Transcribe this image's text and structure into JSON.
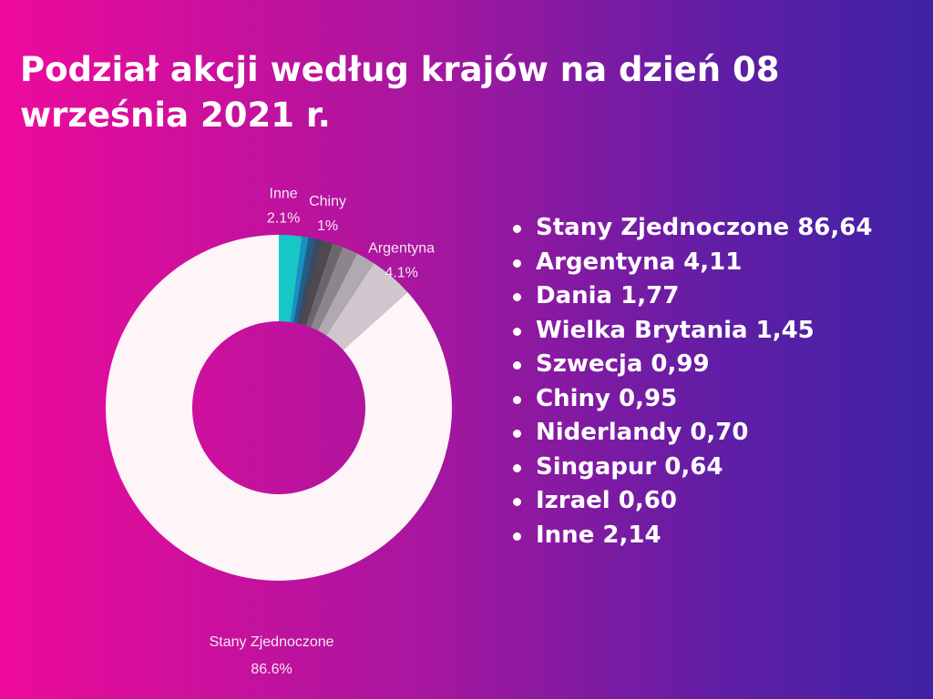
{
  "title": "Podział akcji według krajów na dzień 08 września 2021 r.",
  "legend_items": [
    "Stany Zjednoczone 86,64",
    "Argentyna 4,11",
    "Dania 1,77",
    "Wielka Brytania 1,45",
    "Szwecja 0,99",
    "Chiny 0,95",
    "Niderlandy 0,70",
    "Singapur 0,64",
    "Izrael 0,60",
    "Inne 2,14"
  ],
  "chart_data": {
    "type": "pie",
    "title": "Podział akcji według krajów na dzień 08 września 2021 r.",
    "categories": [
      "Stany Zjednoczone",
      "Argentyna",
      "Dania",
      "Wielka Brytania",
      "Szwecja",
      "Chiny",
      "Niderlandy",
      "Singapur",
      "Izrael",
      "Inne"
    ],
    "values": [
      86.64,
      4.11,
      1.77,
      1.45,
      0.99,
      0.95,
      0.7,
      0.64,
      0.6,
      2.14
    ],
    "colors": [
      "#fdf5f8",
      "#cfc7cd",
      "#b0a9b0",
      "#8c868c",
      "#6b666b",
      "#4d494d",
      "#3b4a5c",
      "#1f5f8a",
      "#1990c4",
      "#17c6c6"
    ],
    "slice_labels": [
      {
        "name": "Stany Zjednoczone",
        "value": "86.6%"
      },
      {
        "name": "Argentyna",
        "value": "4.1%"
      },
      {
        "name": "Chiny",
        "value": "1%"
      },
      {
        "name": "Inne",
        "value": "2.1%"
      }
    ],
    "donut": true,
    "legend": "right"
  }
}
